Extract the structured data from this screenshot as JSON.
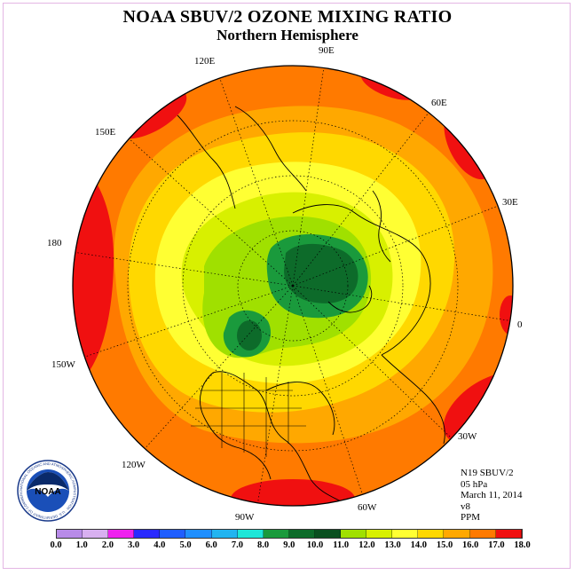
{
  "title": "NOAA SBUV/2 OZONE MIXING RATIO",
  "subtitle": "Northern Hemisphere",
  "longitude_labels": [
    "90E",
    "60E",
    "30E",
    "0",
    "30W",
    "60W",
    "90W",
    "120W",
    "150W",
    "180",
    "150E",
    "120E"
  ],
  "info": [
    "N19 SBUV/2",
    "05 hPa",
    "March 11, 2014",
    "v8",
    "PPM"
  ],
  "logo": {
    "text": "NOAA",
    "ring_text": "NATIONAL OCEANIC AND ATMOSPHERIC ADMINISTRATION · U.S. DEPARTMENT OF COMMERCE"
  },
  "colorbar": {
    "ticks": [
      "0.0",
      "1.0",
      "2.0",
      "3.0",
      "4.0",
      "5.0",
      "6.0",
      "7.0",
      "8.0",
      "9.0",
      "10.0",
      "11.0",
      "12.0",
      "13.0",
      "14.0",
      "15.0",
      "16.0",
      "17.0",
      "18.0"
    ],
    "colors": [
      "#b88be8",
      "#d8b0f0",
      "#ee22ee",
      "#2a2aff",
      "#1f5eff",
      "#1f8fff",
      "#22b4f0",
      "#1ee6d8",
      "#1a9a3c",
      "#0d6b2a",
      "#0a4f20",
      "#a0e000",
      "#d8f000",
      "#ffff33",
      "#ffd800",
      "#ffa800",
      "#ff7a00",
      "#f01010",
      "#9c5a3a"
    ]
  },
  "map_levels": [
    {
      "level": "16.0",
      "color": "#f01010"
    },
    {
      "level": "15.0",
      "color": "#ff7a00"
    },
    {
      "level": "14.0",
      "color": "#ffa800"
    },
    {
      "level": "13.0",
      "color": "#ffd800"
    },
    {
      "level": "12.0",
      "color": "#ffff33"
    },
    {
      "level": "11.0",
      "color": "#d8f000"
    },
    {
      "level": "10.0",
      "color": "#a0e000"
    },
    {
      "level": "9.0",
      "color": "#1a9a3c"
    },
    {
      "level": "8.0",
      "color": "#0d6b2a"
    }
  ]
}
